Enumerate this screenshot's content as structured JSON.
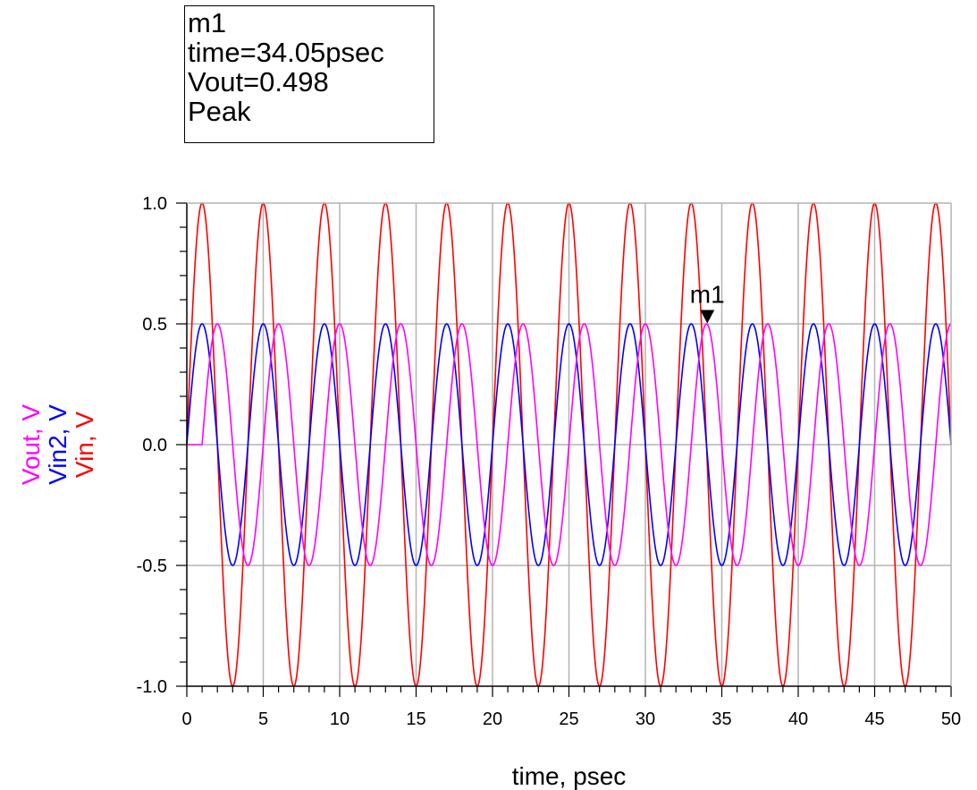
{
  "marker_readout": {
    "name": "m1",
    "line_time": "time=34.05psec",
    "line_value": "Vout=0.498",
    "line_type": "Peak"
  },
  "chart_data": {
    "type": "line",
    "xlabel": "time, psec",
    "ylabel_parts": [
      {
        "text": "Vout, V",
        "color": "#ff00ff"
      },
      {
        "text": "Vin2, V",
        "color": "#0000ff"
      },
      {
        "text": "Vin, V",
        "color": "#ff0000"
      }
    ],
    "xlim": [
      0,
      50
    ],
    "ylim": [
      -1.0,
      1.0
    ],
    "x_ticks": [
      0,
      5,
      10,
      15,
      20,
      25,
      30,
      35,
      40,
      45,
      50
    ],
    "x_tick_labels": [
      "0",
      "5",
      "10",
      "15",
      "20",
      "25",
      "30",
      "35",
      "40",
      "45",
      "50"
    ],
    "y_ticks": [
      -1.0,
      -0.5,
      0.0,
      0.5,
      1.0
    ],
    "y_tick_labels": [
      "-1.0",
      "-0.5",
      "0.0",
      "0.5",
      "1.0"
    ],
    "y_minor_step": 0.1,
    "x_minor_step": 1,
    "grid": true,
    "series": [
      {
        "name": "Vin",
        "color": "#ff0000",
        "amplitude": 1.0,
        "period_psec": 4,
        "phase_deg": 0,
        "delay_psec": 0
      },
      {
        "name": "Vin2",
        "color": "#0000ff",
        "amplitude": 0.5,
        "period_psec": 4,
        "phase_deg": 0,
        "delay_psec": 0
      },
      {
        "name": "Vout",
        "color": "#ff00ff",
        "amplitude": 0.5,
        "period_psec": 4,
        "phase_deg": 0,
        "delay_psec": 1
      }
    ],
    "marker": {
      "name": "m1",
      "time_psec": 34.05,
      "value": 0.498,
      "series": "Vout",
      "type": "Peak"
    }
  }
}
